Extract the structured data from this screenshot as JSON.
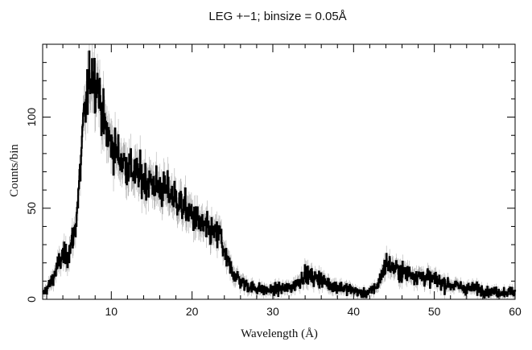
{
  "chart_data": {
    "type": "line",
    "title": "LEG +−1; binsize = 0.05Å",
    "xlabel": "Wavelength (Å)",
    "ylabel": "Counts/bin",
    "xlim": [
      1.5,
      60
    ],
    "ylim": [
      0,
      140
    ],
    "x_ticks": [
      10,
      20,
      30,
      40,
      50,
      60
    ],
    "y_ticks": [
      0,
      50,
      100
    ],
    "grid": false,
    "style": {
      "series_color": "#000000",
      "errorbar_color": "#b0b0b0"
    },
    "series": [
      {
        "style": "histogram-with-errorbars",
        "x": [
          1.5,
          2.5,
          3.5,
          4.0,
          4.5,
          5.0,
          5.5,
          6.0,
          6.5,
          7.0,
          7.3,
          7.6,
          8.0,
          8.3,
          8.7,
          9.0,
          9.5,
          10.0,
          11.0,
          12.0,
          13.0,
          14.0,
          15.0,
          16.0,
          17.0,
          18.0,
          19.0,
          20.0,
          21.0,
          22.0,
          23.0,
          23.5,
          24.0,
          25.0,
          26.0,
          27.0,
          28.0,
          29.0,
          30.0,
          31.0,
          32.0,
          33.0,
          34.0,
          35.0,
          36.0,
          37.0,
          38.0,
          39.0,
          40.0,
          41.0,
          42.0,
          43.0,
          43.5,
          44.0,
          45.0,
          46.0,
          47.0,
          48.0,
          49.0,
          50.0,
          51.0,
          52.0,
          53.0,
          54.0,
          55.0,
          56.0,
          57.0,
          58.0,
          59.0,
          60.0
        ],
        "y": [
          3,
          9,
          20,
          24,
          23,
          30,
          38,
          62,
          95,
          112,
          120,
          125,
          118,
          120,
          105,
          98,
          90,
          85,
          78,
          73,
          69,
          66,
          64,
          61,
          59,
          55,
          50,
          46,
          41,
          38,
          35,
          36,
          24,
          15,
          10,
          7,
          6,
          5,
          5,
          6,
          6,
          9,
          14,
          12,
          11,
          8,
          7,
          6,
          5,
          3,
          4,
          8,
          14,
          20,
          17,
          15,
          14,
          13,
          12,
          11,
          9,
          8,
          7,
          6,
          6,
          5,
          4,
          4,
          4,
          4
        ]
      }
    ]
  }
}
